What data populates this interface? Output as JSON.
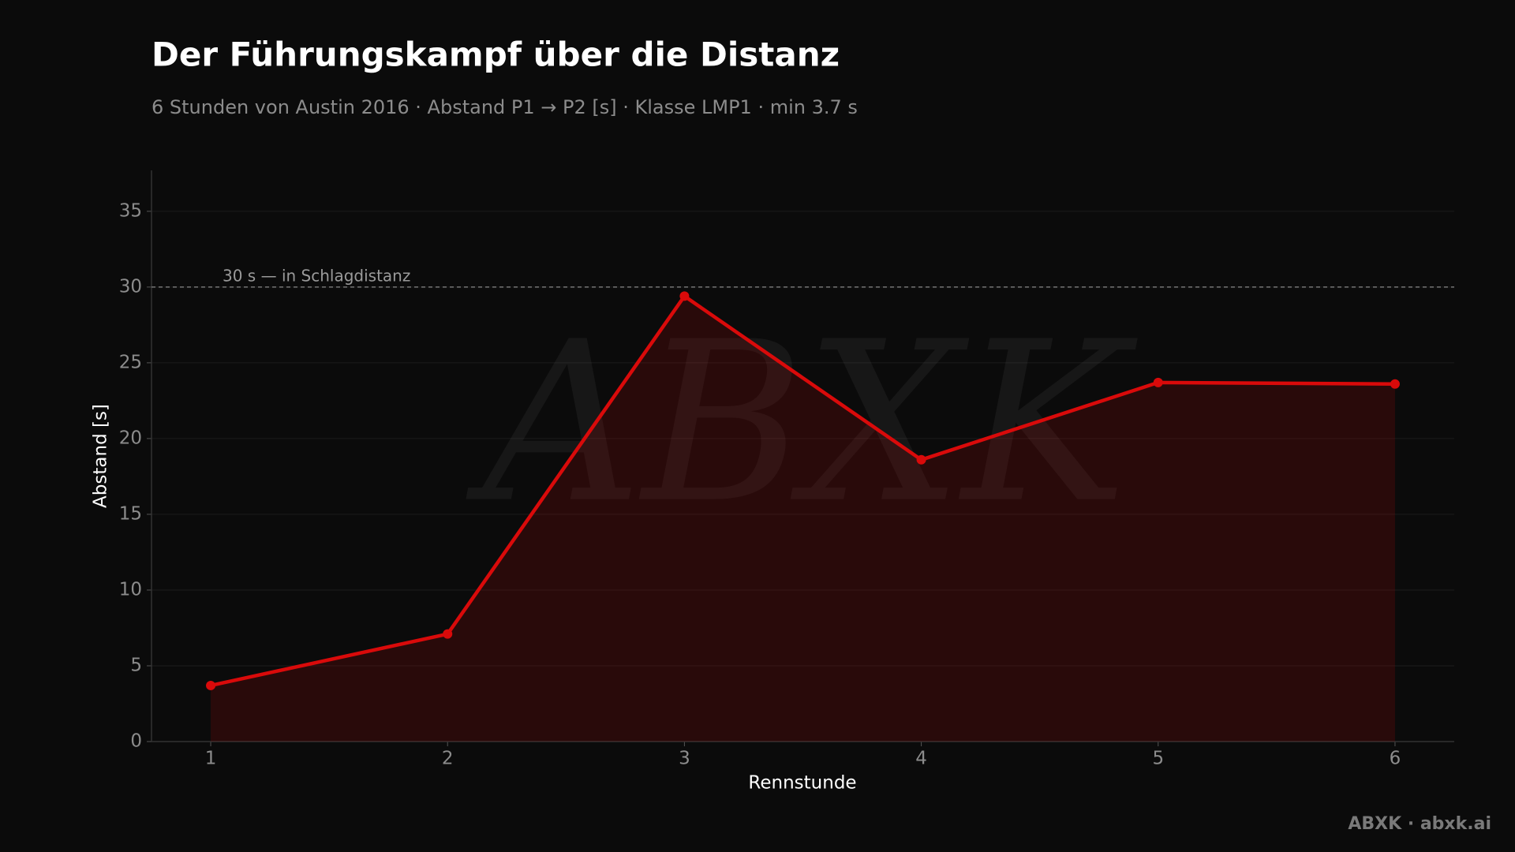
{
  "chart_data": {
    "type": "line",
    "title": "Der Führungskampf über die Distanz",
    "subtitle": "6 Stunden von Austin 2016 · Abstand P1 → P2 [s] · Klasse LMP1 · min 3.7 s",
    "x_label": "Rennstunde",
    "y_label": "Abstand [s]",
    "x": [
      1,
      2,
      3,
      4,
      5,
      6
    ],
    "values": [
      3.7,
      7.1,
      29.4,
      18.6,
      23.7,
      23.6
    ],
    "color": "#d90a0a",
    "fill": true,
    "xlim": [
      0.75,
      6.25
    ],
    "xticks": [
      1,
      2,
      3,
      4,
      5,
      6
    ],
    "ylim": [
      0,
      37.7
    ],
    "yticks": [
      0,
      5,
      10,
      15,
      20,
      25,
      30,
      35
    ],
    "grid": true,
    "reference_line": {
      "value": 30,
      "label": "30 s — in Schlagdistanz"
    },
    "watermark": "ABXK",
    "footer": "ABXK · abxk.ai"
  }
}
